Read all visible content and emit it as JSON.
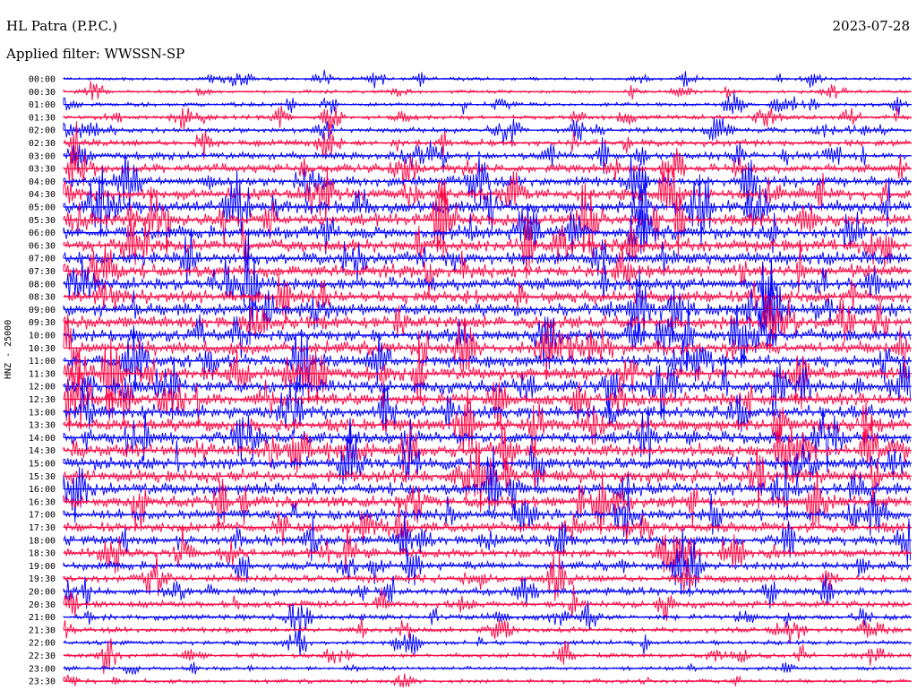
{
  "header": {
    "station": "HL Patra (P.P.C.)",
    "date": "2023-07-28",
    "filter": "Applied filter: WWSSN-SP"
  },
  "chart_data": {
    "type": "line",
    "ylabel": "HNZ - 25000",
    "row_times": [
      "00:00",
      "00:30",
      "01:00",
      "01:30",
      "02:00",
      "02:30",
      "03:00",
      "03:30",
      "04:00",
      "04:30",
      "05:00",
      "05:30",
      "06:00",
      "06:30",
      "07:00",
      "07:30",
      "08:00",
      "08:30",
      "09:00",
      "09:30",
      "10:00",
      "10:30",
      "11:00",
      "11:30",
      "12:00",
      "12:30",
      "13:00",
      "13:30",
      "14:00",
      "14:30",
      "15:00",
      "15:30",
      "16:00",
      "16:30",
      "17:00",
      "17:30",
      "18:00",
      "18:30",
      "19:00",
      "19:30",
      "20:00",
      "20:30",
      "21:00",
      "21:30",
      "22:00",
      "22:30",
      "23:00",
      "23:30"
    ],
    "row_colors": [
      "#0000ff",
      "#ff0040"
    ],
    "amplitude_profile": [
      0.25,
      0.25,
      0.3,
      0.35,
      0.4,
      0.5,
      0.55,
      0.65,
      0.8,
      0.9,
      1.0,
      1.0,
      1.0,
      1.0,
      1.0,
      1.0,
      1.0,
      1.0,
      1.0,
      1.0,
      1.0,
      1.0,
      1.0,
      1.0,
      1.0,
      1.0,
      1.0,
      1.0,
      1.0,
      1.0,
      1.0,
      1.0,
      0.95,
      0.9,
      0.85,
      0.8,
      0.75,
      0.7,
      0.65,
      0.6,
      0.55,
      0.5,
      0.45,
      0.4,
      0.35,
      0.35,
      0.3,
      0.3
    ]
  }
}
